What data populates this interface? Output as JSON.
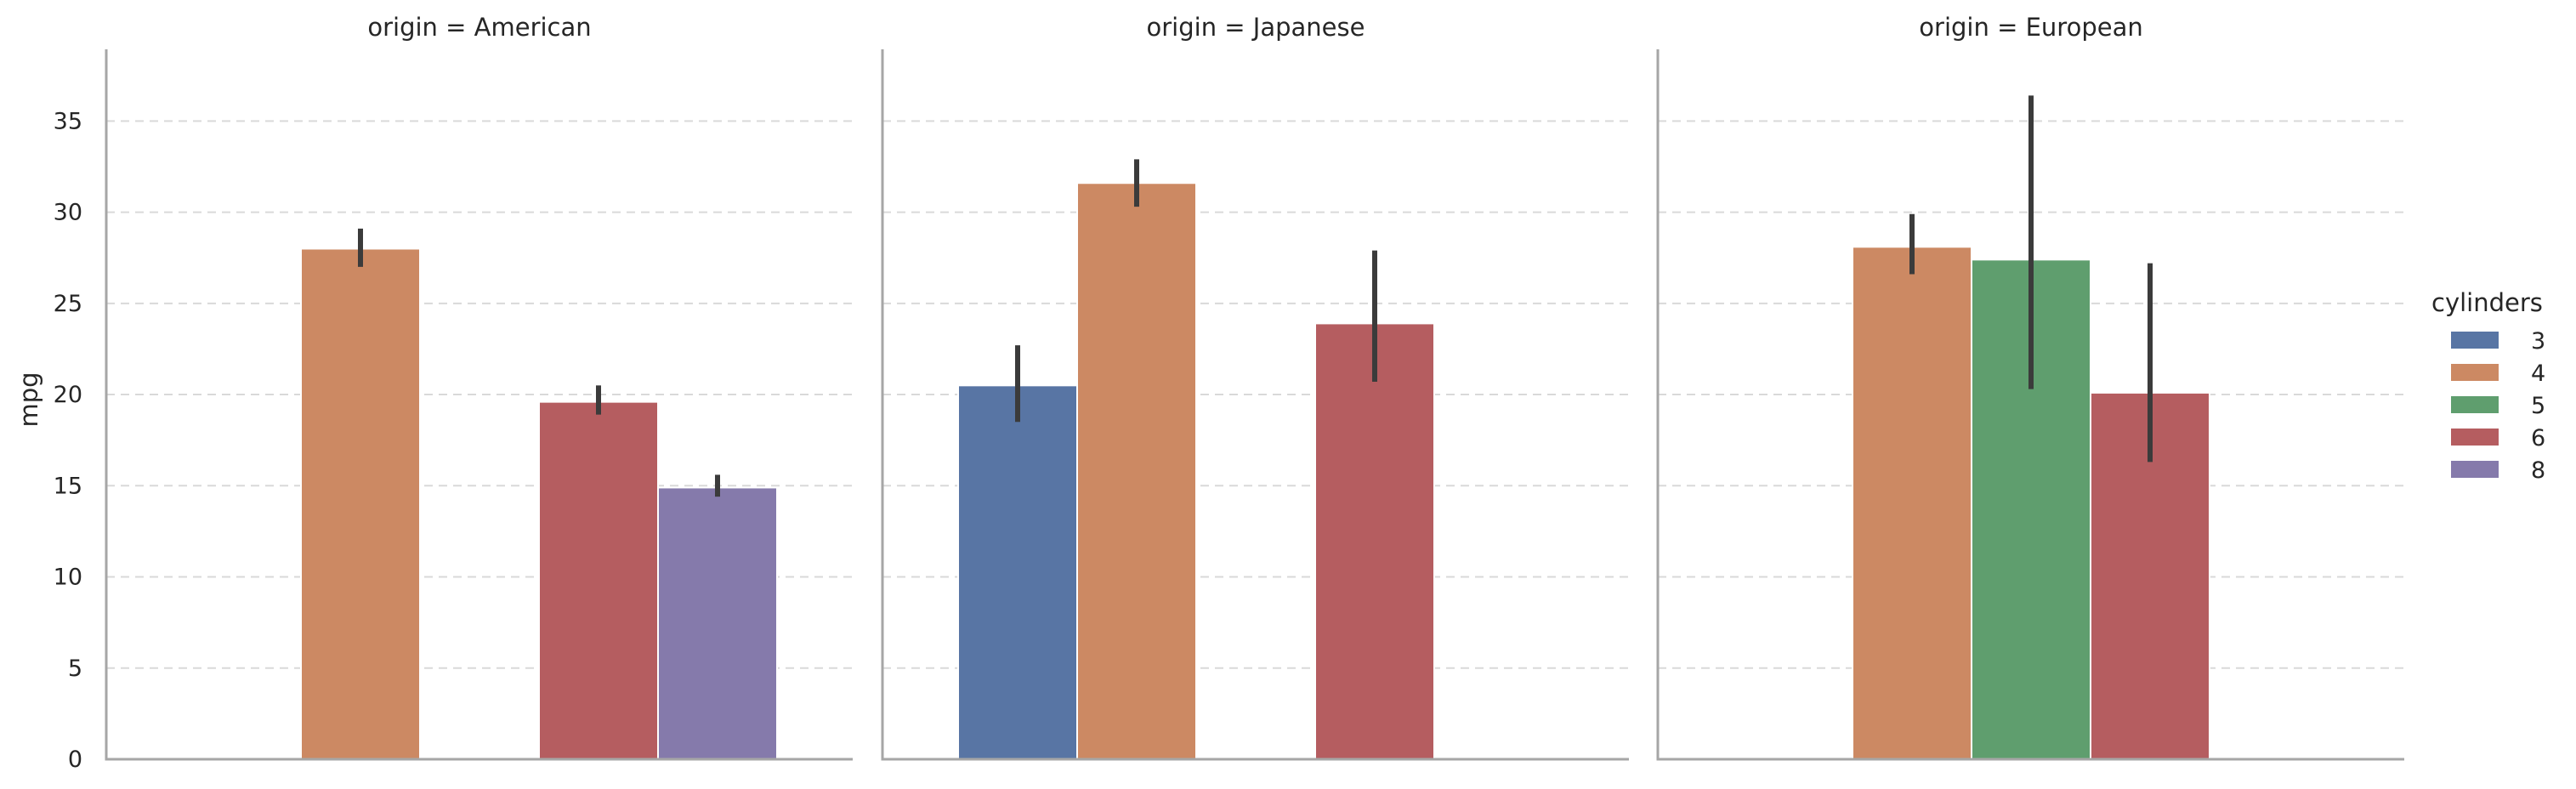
{
  "chart_data": {
    "type": "bar",
    "ylabel": "mpg",
    "ylim": [
      0,
      38
    ],
    "yticks": [
      0,
      5,
      10,
      15,
      20,
      25,
      30,
      35
    ],
    "grid": true,
    "legend": {
      "title": "cylinders",
      "placement": "right",
      "entries": [
        "3",
        "4",
        "5",
        "6",
        "8"
      ]
    },
    "hue_order": [
      "3",
      "4",
      "5",
      "6",
      "8"
    ],
    "colors": {
      "3": "#5875a4",
      "4": "#cc8963",
      "5": "#5f9e6e",
      "6": "#b55d60",
      "8": "#857aab"
    },
    "panels": [
      {
        "title": "origin = American",
        "bars": [
          {
            "cylinders": "4",
            "value": 28.0,
            "ci": [
              27.0,
              29.1
            ]
          },
          {
            "cylinders": "6",
            "value": 19.6,
            "ci": [
              18.9,
              20.5
            ]
          },
          {
            "cylinders": "8",
            "value": 14.9,
            "ci": [
              14.4,
              15.6
            ]
          }
        ]
      },
      {
        "title": "origin = Japanese",
        "bars": [
          {
            "cylinders": "3",
            "value": 20.5,
            "ci": [
              18.5,
              22.7
            ]
          },
          {
            "cylinders": "4",
            "value": 31.6,
            "ci": [
              30.3,
              32.9
            ]
          },
          {
            "cylinders": "6",
            "value": 23.9,
            "ci": [
              20.7,
              27.9
            ]
          }
        ]
      },
      {
        "title": "origin = European",
        "bars": [
          {
            "cylinders": "4",
            "value": 28.1,
            "ci": [
              26.6,
              29.9
            ]
          },
          {
            "cylinders": "5",
            "value": 27.4,
            "ci": [
              20.3,
              36.4
            ]
          },
          {
            "cylinders": "6",
            "value": 20.1,
            "ci": [
              16.3,
              27.2
            ]
          }
        ]
      }
    ]
  }
}
